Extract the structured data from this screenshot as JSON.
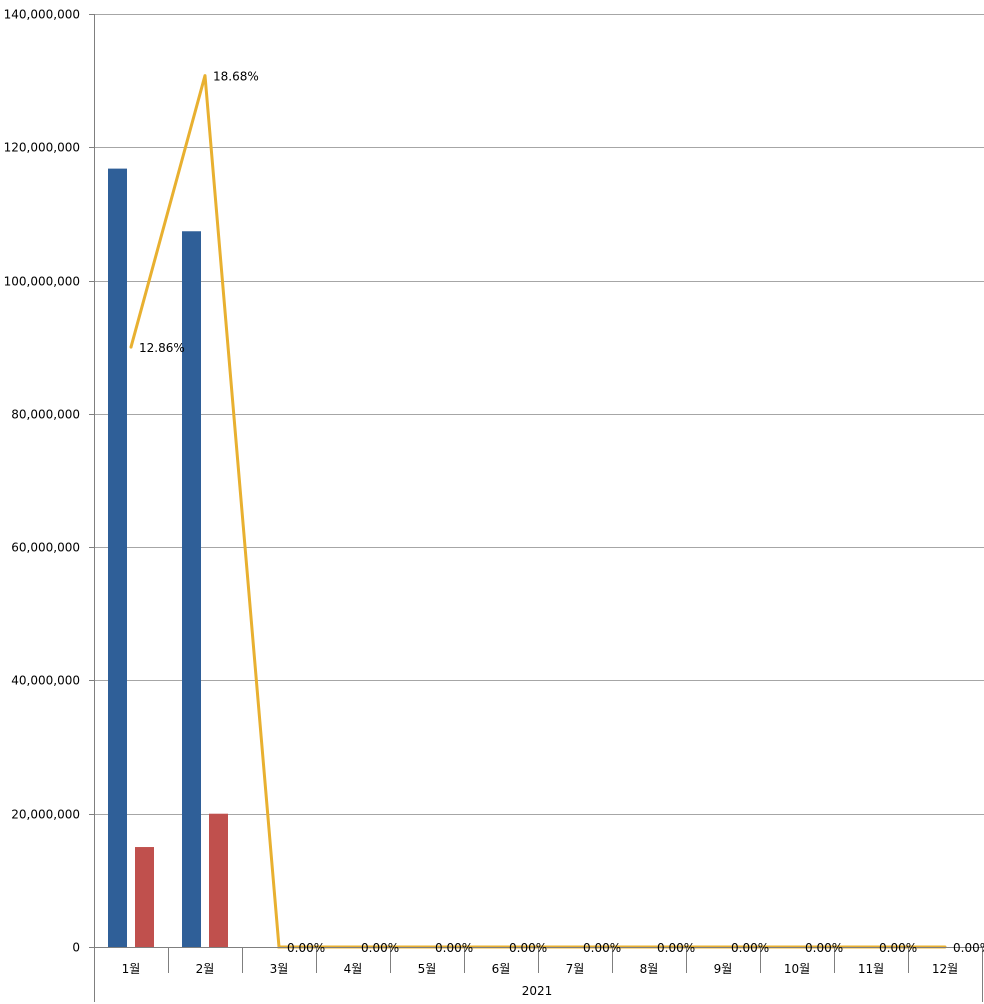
{
  "chart_data": {
    "type": "bar",
    "categories": [
      "1월",
      "2월",
      "3월",
      "4월",
      "5월",
      "6월",
      "7월",
      "8월",
      "9월",
      "10월",
      "11월",
      "12월"
    ],
    "group_label": "2021",
    "series": [
      {
        "values": [
          116800000,
          107400000,
          0,
          0,
          0,
          0,
          0,
          0,
          0,
          0,
          0,
          0
        ],
        "color": "#2f5f98",
        "kind": "bar"
      },
      {
        "values": [
          15000000,
          20000000,
          0,
          0,
          0,
          0,
          0,
          0,
          0,
          0,
          0,
          0
        ],
        "color": "#c0504d",
        "kind": "bar"
      },
      {
        "values": [
          12.86,
          18.68,
          0,
          0,
          0,
          0,
          0,
          0,
          0,
          0,
          0,
          0
        ],
        "color": "#e8b030",
        "kind": "line",
        "axis": "secondary",
        "labels": [
          "12.86%",
          "18.68%",
          "0.00%",
          "0.00%",
          "0.00%",
          "0.00%",
          "0.00%",
          "0.00%",
          "0.00%",
          "0.00%",
          "0.00%",
          "0.00%"
        ]
      }
    ],
    "ylim": [
      0,
      140000000
    ],
    "yticks": [
      0,
      20000000,
      40000000,
      60000000,
      80000000,
      100000000,
      120000000,
      140000000
    ],
    "ytick_labels": [
      "0",
      "20,000,000",
      "40,000,000",
      "60,000,000",
      "80,000,000",
      "100,000,000",
      "120,000,000",
      "140,000,000"
    ],
    "y2lim": [
      0,
      20
    ],
    "grid": true,
    "title": "",
    "xlabel": "",
    "ylabel": ""
  }
}
